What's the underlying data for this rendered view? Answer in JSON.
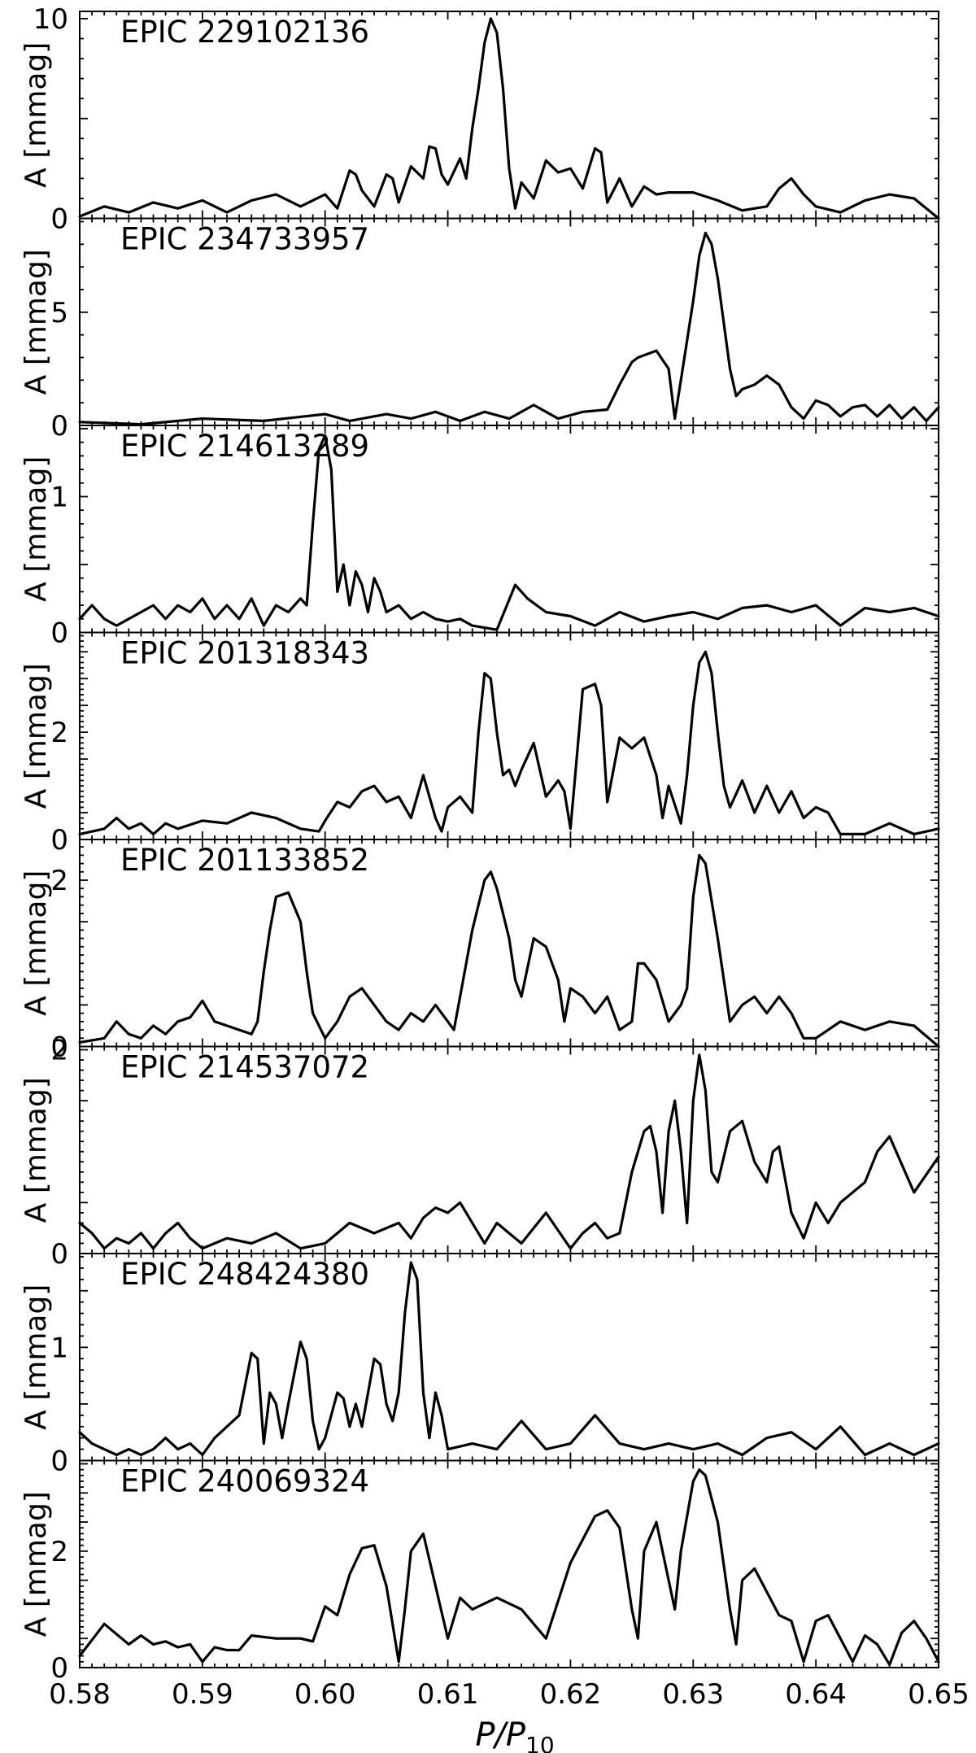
{
  "chart_data": {
    "type": "line",
    "xlim": [
      0.58,
      0.65
    ],
    "x_ticks": [
      "0.58",
      "0.59",
      "0.60",
      "0.61",
      "0.62",
      "0.63",
      "0.64",
      "0.65"
    ],
    "xlabel": {
      "main": "P/P",
      "sub": "10"
    },
    "ylabel": "A [mmag]",
    "panels": [
      {
        "label": "EPIC 229102136",
        "ylim": [
          0,
          10.2
        ],
        "y_ticks": [
          "0",
          "10"
        ],
        "x": [
          0.58,
          0.582,
          0.584,
          0.586,
          0.588,
          0.59,
          0.592,
          0.594,
          0.596,
          0.598,
          0.6,
          0.601,
          0.602,
          0.6025,
          0.603,
          0.604,
          0.605,
          0.6055,
          0.606,
          0.607,
          0.608,
          0.6085,
          0.609,
          0.6095,
          0.61,
          0.611,
          0.6115,
          0.612,
          0.6125,
          0.613,
          0.6135,
          0.614,
          0.6145,
          0.615,
          0.6155,
          0.616,
          0.617,
          0.618,
          0.619,
          0.62,
          0.621,
          0.622,
          0.6225,
          0.623,
          0.624,
          0.625,
          0.626,
          0.627,
          0.628,
          0.63,
          0.632,
          0.634,
          0.636,
          0.637,
          0.638,
          0.639,
          0.64,
          0.642,
          0.644,
          0.646,
          0.648,
          0.65
        ],
        "y": [
          0.1,
          0.6,
          0.3,
          0.8,
          0.5,
          0.9,
          0.3,
          0.9,
          1.2,
          0.6,
          1.2,
          0.5,
          2.4,
          2.2,
          1.4,
          0.6,
          2.2,
          2.0,
          0.8,
          2.6,
          2.0,
          3.6,
          3.5,
          2.2,
          1.7,
          3.0,
          2.0,
          4.5,
          6.5,
          8.8,
          10.0,
          9.3,
          6.5,
          2.5,
          0.5,
          1.8,
          1.0,
          2.9,
          2.3,
          2.5,
          1.5,
          3.5,
          3.3,
          0.8,
          2.0,
          0.6,
          1.6,
          1.2,
          1.3,
          1.3,
          0.9,
          0.4,
          0.6,
          1.5,
          2.0,
          1.2,
          0.6,
          0.3,
          0.9,
          1.2,
          1.0,
          0.0
        ]
      },
      {
        "label": "EPIC 234733957",
        "ylim": [
          0,
          9.0
        ],
        "y_ticks": [
          "0",
          "5"
        ],
        "x": [
          0.58,
          0.585,
          0.59,
          0.595,
          0.6,
          0.602,
          0.605,
          0.607,
          0.609,
          0.611,
          0.613,
          0.615,
          0.617,
          0.619,
          0.621,
          0.623,
          0.624,
          0.625,
          0.6255,
          0.626,
          0.627,
          0.628,
          0.6285,
          0.629,
          0.63,
          0.6305,
          0.631,
          0.6315,
          0.632,
          0.633,
          0.6335,
          0.634,
          0.635,
          0.636,
          0.637,
          0.638,
          0.639,
          0.64,
          0.641,
          0.642,
          0.643,
          0.644,
          0.645,
          0.646,
          0.647,
          0.648,
          0.649,
          0.65
        ],
        "y": [
          0.15,
          0.05,
          0.3,
          0.2,
          0.5,
          0.2,
          0.5,
          0.3,
          0.6,
          0.2,
          0.6,
          0.3,
          0.9,
          0.3,
          0.6,
          0.7,
          1.8,
          2.8,
          3.0,
          3.1,
          3.3,
          2.5,
          0.3,
          2.0,
          5.5,
          7.5,
          8.5,
          8.0,
          6.5,
          2.5,
          1.3,
          1.6,
          1.8,
          2.2,
          1.8,
          0.8,
          0.3,
          1.1,
          0.9,
          0.4,
          0.8,
          0.9,
          0.4,
          0.9,
          0.3,
          0.8,
          0.2,
          0.8
        ]
      },
      {
        "label": "EPIC 214613289",
        "ylim": [
          0,
          1.5
        ],
        "y_ticks": [
          "0",
          "1"
        ],
        "x": [
          0.58,
          0.581,
          0.582,
          0.583,
          0.585,
          0.586,
          0.587,
          0.588,
          0.589,
          0.59,
          0.591,
          0.592,
          0.593,
          0.594,
          0.595,
          0.596,
          0.597,
          0.598,
          0.5985,
          0.599,
          0.5995,
          0.6,
          0.6005,
          0.601,
          0.6015,
          0.602,
          0.6025,
          0.603,
          0.6035,
          0.604,
          0.6045,
          0.605,
          0.606,
          0.607,
          0.608,
          0.609,
          0.61,
          0.611,
          0.612,
          0.614,
          0.6155,
          0.6165,
          0.618,
          0.62,
          0.622,
          0.624,
          0.626,
          0.628,
          0.63,
          0.632,
          0.634,
          0.636,
          0.638,
          0.64,
          0.642,
          0.644,
          0.646,
          0.648,
          0.65
        ],
        "y": [
          0.1,
          0.2,
          0.1,
          0.05,
          0.15,
          0.2,
          0.1,
          0.2,
          0.15,
          0.25,
          0.1,
          0.2,
          0.1,
          0.25,
          0.05,
          0.2,
          0.15,
          0.25,
          0.2,
          0.8,
          1.35,
          1.45,
          1.2,
          0.3,
          0.5,
          0.2,
          0.45,
          0.35,
          0.15,
          0.4,
          0.3,
          0.15,
          0.2,
          0.1,
          0.15,
          0.1,
          0.08,
          0.1,
          0.05,
          0.02,
          0.35,
          0.25,
          0.15,
          0.12,
          0.05,
          0.15,
          0.08,
          0.12,
          0.15,
          0.1,
          0.18,
          0.2,
          0.15,
          0.2,
          0.05,
          0.18,
          0.15,
          0.18,
          0.12
        ]
      },
      {
        "label": "EPIC 201318343",
        "ylim": [
          0,
          3.8
        ],
        "y_ticks": [
          "0",
          "2"
        ],
        "x": [
          0.58,
          0.582,
          0.583,
          0.584,
          0.585,
          0.586,
          0.587,
          0.588,
          0.59,
          0.592,
          0.594,
          0.596,
          0.598,
          0.5995,
          0.6,
          0.601,
          0.602,
          0.603,
          0.604,
          0.605,
          0.606,
          0.607,
          0.608,
          0.609,
          0.6095,
          0.61,
          0.611,
          0.612,
          0.6125,
          0.613,
          0.6135,
          0.614,
          0.6145,
          0.615,
          0.6155,
          0.616,
          0.617,
          0.6175,
          0.618,
          0.619,
          0.6195,
          0.62,
          0.6205,
          0.621,
          0.622,
          0.6225,
          0.623,
          0.624,
          0.625,
          0.626,
          0.627,
          0.6275,
          0.628,
          0.629,
          0.6295,
          0.63,
          0.6305,
          0.631,
          0.6315,
          0.632,
          0.6325,
          0.633,
          0.634,
          0.635,
          0.636,
          0.637,
          0.638,
          0.639,
          0.64,
          0.641,
          0.642,
          0.644,
          0.646,
          0.648,
          0.65
        ],
        "y": [
          0.1,
          0.2,
          0.4,
          0.2,
          0.3,
          0.1,
          0.3,
          0.2,
          0.35,
          0.3,
          0.5,
          0.4,
          0.2,
          0.15,
          0.35,
          0.7,
          0.6,
          0.9,
          1.0,
          0.7,
          0.8,
          0.4,
          1.2,
          0.4,
          0.15,
          0.6,
          0.8,
          0.5,
          2.0,
          3.1,
          3.0,
          2.0,
          1.2,
          1.3,
          1.0,
          1.3,
          1.8,
          1.3,
          0.8,
          1.1,
          0.9,
          0.2,
          1.5,
          2.8,
          2.9,
          2.5,
          0.7,
          1.9,
          1.7,
          1.9,
          1.2,
          0.4,
          1.0,
          0.3,
          1.2,
          2.5,
          3.3,
          3.5,
          3.1,
          2.0,
          1.0,
          0.6,
          1.1,
          0.5,
          1.0,
          0.5,
          0.9,
          0.4,
          0.6,
          0.5,
          0.1,
          0.1,
          0.3,
          0.1,
          0.2
        ]
      },
      {
        "label": "EPIC 201133852",
        "ylim": [
          0,
          2.45
        ],
        "y_ticks": [
          "0",
          "2"
        ],
        "x": [
          0.58,
          0.582,
          0.583,
          0.584,
          0.585,
          0.586,
          0.587,
          0.588,
          0.589,
          0.59,
          0.591,
          0.592,
          0.593,
          0.594,
          0.5945,
          0.595,
          0.5955,
          0.596,
          0.597,
          0.598,
          0.5985,
          0.599,
          0.6,
          0.601,
          0.602,
          0.603,
          0.604,
          0.605,
          0.606,
          0.607,
          0.608,
          0.609,
          0.61,
          0.6105,
          0.611,
          0.612,
          0.613,
          0.6135,
          0.614,
          0.615,
          0.6155,
          0.616,
          0.617,
          0.618,
          0.619,
          0.6195,
          0.62,
          0.621,
          0.622,
          0.623,
          0.624,
          0.625,
          0.6255,
          0.626,
          0.627,
          0.628,
          0.629,
          0.6295,
          0.63,
          0.6305,
          0.631,
          0.632,
          0.633,
          0.634,
          0.635,
          0.636,
          0.637,
          0.638,
          0.639,
          0.64,
          0.641,
          0.642,
          0.644,
          0.646,
          0.648,
          0.65
        ],
        "y": [
          0.05,
          0.1,
          0.3,
          0.15,
          0.1,
          0.25,
          0.15,
          0.3,
          0.35,
          0.55,
          0.3,
          0.25,
          0.2,
          0.15,
          0.3,
          0.9,
          1.4,
          1.8,
          1.85,
          1.5,
          0.9,
          0.4,
          0.1,
          0.3,
          0.6,
          0.7,
          0.5,
          0.3,
          0.2,
          0.4,
          0.3,
          0.5,
          0.3,
          0.2,
          0.6,
          1.4,
          2.0,
          2.1,
          1.9,
          1.3,
          0.8,
          0.6,
          1.3,
          1.2,
          0.8,
          0.3,
          0.7,
          0.6,
          0.4,
          0.6,
          0.2,
          0.3,
          1.0,
          1.0,
          0.8,
          0.3,
          0.5,
          0.7,
          1.8,
          2.3,
          2.2,
          1.3,
          0.3,
          0.5,
          0.6,
          0.4,
          0.6,
          0.4,
          0.1,
          0.1,
          0.2,
          0.3,
          0.2,
          0.3,
          0.25,
          0.0
        ]
      },
      {
        "label": "EPIC 214537072",
        "ylim": [
          0,
          2.0
        ],
        "y_ticks": [
          "0",
          "2"
        ],
        "x": [
          0.58,
          0.581,
          0.582,
          0.583,
          0.584,
          0.585,
          0.586,
          0.587,
          0.588,
          0.589,
          0.59,
          0.592,
          0.594,
          0.596,
          0.598,
          0.6,
          0.602,
          0.604,
          0.606,
          0.607,
          0.608,
          0.609,
          0.61,
          0.611,
          0.612,
          0.613,
          0.614,
          0.615,
          0.616,
          0.618,
          0.62,
          0.621,
          0.622,
          0.623,
          0.624,
          0.625,
          0.626,
          0.6265,
          0.627,
          0.6275,
          0.628,
          0.6285,
          0.629,
          0.6295,
          0.63,
          0.6305,
          0.631,
          0.6315,
          0.632,
          0.633,
          0.634,
          0.635,
          0.636,
          0.6365,
          0.637,
          0.638,
          0.639,
          0.64,
          0.641,
          0.642,
          0.644,
          0.645,
          0.646,
          0.648,
          0.65
        ],
        "y": [
          0.3,
          0.2,
          0.05,
          0.15,
          0.1,
          0.2,
          0.05,
          0.2,
          0.3,
          0.15,
          0.05,
          0.15,
          0.1,
          0.2,
          0.05,
          0.1,
          0.3,
          0.2,
          0.3,
          0.15,
          0.35,
          0.45,
          0.4,
          0.5,
          0.3,
          0.1,
          0.3,
          0.2,
          0.1,
          0.4,
          0.05,
          0.2,
          0.3,
          0.15,
          0.2,
          0.8,
          1.2,
          1.25,
          1.0,
          0.4,
          1.2,
          1.5,
          1.0,
          0.3,
          1.5,
          1.95,
          1.6,
          0.8,
          0.7,
          1.2,
          1.3,
          0.9,
          0.7,
          1.0,
          1.05,
          0.4,
          0.15,
          0.5,
          0.3,
          0.5,
          0.7,
          1.0,
          1.15,
          0.6,
          0.95
        ]
      },
      {
        "label": "EPIC 248424380",
        "ylim": [
          0,
          1.8
        ],
        "y_ticks": [
          "0",
          "1"
        ],
        "x": [
          0.58,
          0.581,
          0.582,
          0.583,
          0.584,
          0.585,
          0.586,
          0.587,
          0.588,
          0.589,
          0.59,
          0.591,
          0.592,
          0.593,
          0.594,
          0.5945,
          0.595,
          0.5955,
          0.596,
          0.5965,
          0.597,
          0.598,
          0.5985,
          0.599,
          0.5995,
          0.6,
          0.601,
          0.6015,
          0.602,
          0.6025,
          0.603,
          0.604,
          0.6045,
          0.605,
          0.6055,
          0.606,
          0.6065,
          0.607,
          0.6075,
          0.608,
          0.6085,
          0.609,
          0.6095,
          0.61,
          0.612,
          0.614,
          0.616,
          0.618,
          0.62,
          0.622,
          0.624,
          0.626,
          0.628,
          0.63,
          0.632,
          0.634,
          0.636,
          0.638,
          0.64,
          0.642,
          0.644,
          0.646,
          0.648,
          0.65
        ],
        "y": [
          0.25,
          0.15,
          0.1,
          0.05,
          0.1,
          0.05,
          0.1,
          0.2,
          0.1,
          0.15,
          0.05,
          0.2,
          0.3,
          0.4,
          0.95,
          0.9,
          0.15,
          0.6,
          0.5,
          0.2,
          0.5,
          1.05,
          0.9,
          0.35,
          0.1,
          0.2,
          0.6,
          0.55,
          0.3,
          0.5,
          0.3,
          0.9,
          0.85,
          0.5,
          0.35,
          0.6,
          1.3,
          1.75,
          1.6,
          0.6,
          0.2,
          0.6,
          0.4,
          0.1,
          0.15,
          0.1,
          0.35,
          0.1,
          0.15,
          0.4,
          0.15,
          0.1,
          0.15,
          0.1,
          0.15,
          0.05,
          0.2,
          0.25,
          0.1,
          0.3,
          0.05,
          0.15,
          0.05,
          0.15
        ]
      },
      {
        "label": "EPIC 240069324",
        "ylim": [
          0,
          3.5
        ],
        "y_ticks": [
          "0",
          "2"
        ],
        "x": [
          0.58,
          0.582,
          0.584,
          0.585,
          0.586,
          0.587,
          0.588,
          0.589,
          0.59,
          0.591,
          0.592,
          0.593,
          0.594,
          0.596,
          0.598,
          0.599,
          0.6,
          0.601,
          0.602,
          0.603,
          0.604,
          0.605,
          0.606,
          0.6065,
          0.607,
          0.608,
          0.609,
          0.61,
          0.611,
          0.612,
          0.614,
          0.616,
          0.618,
          0.62,
          0.621,
          0.622,
          0.623,
          0.624,
          0.625,
          0.6255,
          0.626,
          0.627,
          0.628,
          0.6285,
          0.629,
          0.63,
          0.6305,
          0.631,
          0.632,
          0.633,
          0.6335,
          0.634,
          0.635,
          0.636,
          0.637,
          0.638,
          0.639,
          0.64,
          0.641,
          0.642,
          0.643,
          0.644,
          0.645,
          0.646,
          0.647,
          0.648,
          0.649,
          0.65
        ],
        "y": [
          0.2,
          0.75,
          0.4,
          0.55,
          0.4,
          0.45,
          0.35,
          0.4,
          0.1,
          0.35,
          0.3,
          0.3,
          0.55,
          0.5,
          0.5,
          0.45,
          1.05,
          0.9,
          1.6,
          2.05,
          2.1,
          1.4,
          0.1,
          1.0,
          2.0,
          2.3,
          1.4,
          0.5,
          1.2,
          1.0,
          1.2,
          1.0,
          0.5,
          1.8,
          2.2,
          2.6,
          2.7,
          2.4,
          1.0,
          0.5,
          2.0,
          2.5,
          1.5,
          1.0,
          2.0,
          3.2,
          3.4,
          3.3,
          2.5,
          1.0,
          0.4,
          1.5,
          1.7,
          1.3,
          0.9,
          0.8,
          0.1,
          0.8,
          0.9,
          0.5,
          0.1,
          0.55,
          0.4,
          0.05,
          0.6,
          0.8,
          0.5,
          0.1
        ]
      }
    ]
  }
}
